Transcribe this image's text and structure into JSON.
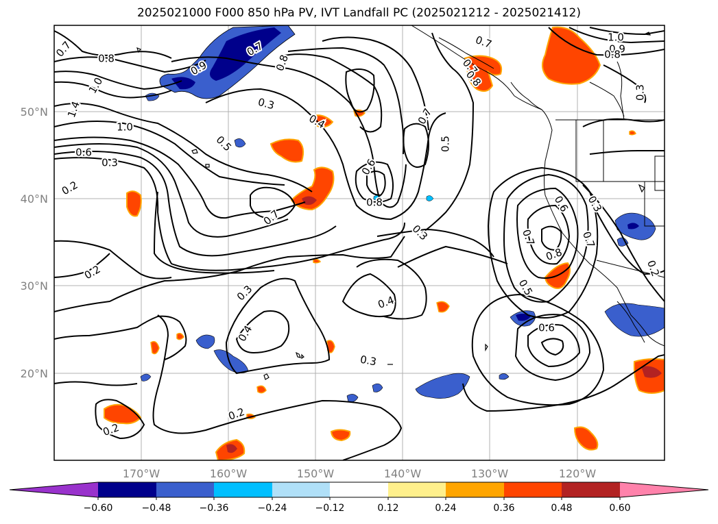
{
  "title": "2025021000 F000 850 hPa PV, IVT Landfall PC (2025021212 - 2025021412)",
  "lat_labels": [
    "50°N",
    "40°N",
    "30°N",
    "20°N"
  ],
  "lon_labels": [
    "170°W",
    "160°W",
    "150°W",
    "140°W",
    "130°W",
    "120°W"
  ],
  "contour_labels": [
    "0.7",
    "0.8",
    "1.0",
    "0.7",
    "0.8",
    "0.9",
    "1.4",
    "1.0",
    "0.6",
    "0.3",
    "0.2",
    "0.3",
    "0.5",
    "0.4",
    "0.7",
    "0.8",
    "0.6",
    "0.5",
    "0.7",
    "0.3",
    "0.7",
    "0.8",
    "1.0",
    "0.9",
    "0.8",
    "0.7",
    "0.3",
    "0.6",
    "0.7",
    "0.8",
    "0.7",
    "0.3",
    "0.5",
    "0.2",
    "0.6",
    "0.4",
    "0.3",
    "0.4",
    "0.3",
    "0.2",
    "0.2",
    "0.2"
  ],
  "colorbar": {
    "ticks": [
      "−0.60",
      "−0.48",
      "−0.36",
      "−0.24",
      "−0.12",
      "0.12",
      "0.24",
      "0.36",
      "0.48",
      "0.60"
    ],
    "colors": [
      "#9932cc",
      "#00008b",
      "#3a5fcd",
      "#00bfff",
      "#b0e0f8",
      "#ffffff",
      "#fff08c",
      "#ffa500",
      "#ff4500",
      "#b22222",
      "#ff82ab"
    ]
  },
  "colors": {
    "coast": "#000000",
    "grid": "#b0b0b0",
    "neg_strong": "#00008b",
    "neg_mid": "#3a5fcd",
    "neg_light": "#00bfff",
    "pos_light": "#fff08c",
    "pos_mid": "#ffa500",
    "pos_strong": "#ff4500",
    "pos_dark": "#b22222"
  }
}
